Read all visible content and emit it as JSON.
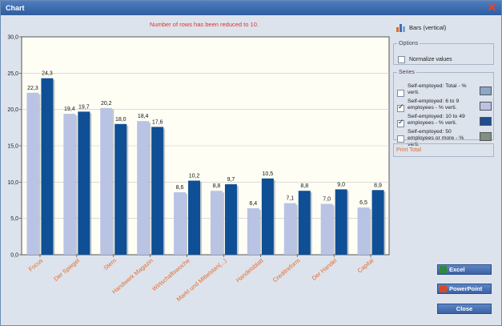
{
  "window": {
    "title": "Chart"
  },
  "notice": "Number of rows has been reduced to 10.",
  "chart_type": {
    "label": "Bars (vertical)",
    "icon": "bar-chart-icon"
  },
  "options": {
    "legend": "Options",
    "normalize_label": "Normalize values",
    "normalize_checked": false
  },
  "series_panel": {
    "legend": "Series",
    "items": [
      {
        "label": "Self-employed: Total - % verti.",
        "checked": false,
        "color": "#8aa8c8"
      },
      {
        "label": "Self-employed: 6 to 9 employees - % verti.",
        "checked": true,
        "color": "#b9c3e4"
      },
      {
        "label": "Self-employed: 10 to 49 employees - % verti.",
        "checked": true,
        "color": "#1f4f8f"
      },
      {
        "label": "Self-employed: 50 employees or more - % verti.",
        "checked": false,
        "color": "#7f8f83"
      }
    ]
  },
  "print_total": "Print Total",
  "buttons": {
    "excel": "Excel",
    "powerpoint": "PowerPoint",
    "close": "Close"
  },
  "chart_data": {
    "type": "bar",
    "categories": [
      "Focus",
      "Der Spiegel",
      "Stern",
      "Handwerk Magazin",
      "Wirtschaftswoche",
      "Markt und Mittelstan(...)",
      "Handelsblatt",
      "Creditreform",
      "Der Handel",
      "Capital"
    ],
    "series": [
      {
        "name": "Self-employed: 6 to 9 employees - % verti.",
        "values": [
          22.3,
          19.4,
          20.2,
          18.4,
          8.6,
          8.8,
          6.4,
          7.1,
          7.0,
          6.5
        ],
        "labels": [
          "22,3",
          "19,4",
          "20,2",
          "18,4",
          "8,6",
          "8,8",
          "6,4",
          "7,1",
          "7,0",
          "6,5"
        ],
        "color": "#b9c3e4"
      },
      {
        "name": "Self-employed: 10 to 49 employees - % verti.",
        "values": [
          24.3,
          19.7,
          18.0,
          17.6,
          10.2,
          9.7,
          10.5,
          8.8,
          9.0,
          8.9
        ],
        "labels": [
          "24,3",
          "19,7",
          "18,0",
          "17,6",
          "10,2",
          "9,7",
          "10,5",
          "8,8",
          "9,0",
          "8,9"
        ],
        "color": "#0f4f95"
      }
    ],
    "yticks": [
      "0,0",
      "5,0",
      "10,0",
      "15,0",
      "20,0",
      "25,0",
      "30,0"
    ],
    "ylim": [
      0,
      30
    ],
    "grid": true,
    "category_label_color": "#e36a2a"
  }
}
